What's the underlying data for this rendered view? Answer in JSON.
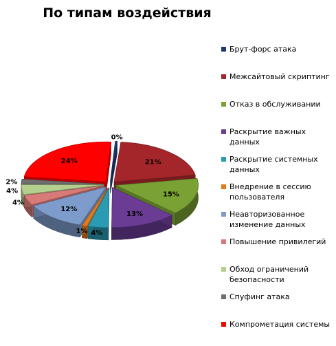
{
  "chart_data": {
    "type": "pie",
    "title": "По типам воздействия",
    "legend_position": "right",
    "slices": [
      {
        "label": "Брут-форс атака",
        "value": 0,
        "value_label": "0%",
        "color": "#1f3b73"
      },
      {
        "label": "Межсайтовый скриптинг",
        "value": 21,
        "value_label": "21%",
        "color": "#a4252a"
      },
      {
        "label": "Отказ в обслуживании",
        "value": 15,
        "value_label": "15%",
        "color": "#7aa134"
      },
      {
        "label": "Раскрытие важных данных",
        "value": 13,
        "value_label": "13%",
        "color": "#6b3c94"
      },
      {
        "label": "Раскрытие системных данных",
        "value": 4,
        "value_label": "4%",
        "color": "#2a9bb2"
      },
      {
        "label": "Внедрение  в сессию пользователя",
        "value": 1,
        "value_label": "1%",
        "color": "#e07b20"
      },
      {
        "label": "Неавторизованное изменение данных",
        "value": 12,
        "value_label": "12%",
        "color": "#7e9ccb"
      },
      {
        "label": "Повышение  привилегий",
        "value": 4,
        "value_label": "4%",
        "color": "#d77a78"
      },
      {
        "label": "Обход ограничений безопасности",
        "value": 4,
        "value_label": "4%",
        "color": "#b5cf8e"
      },
      {
        "label": "Спуфинг атака",
        "value": 2,
        "value_label": "2%",
        "color": "#6f6f6f"
      },
      {
        "label": "Компрометация системы",
        "value": 24,
        "value_label": "24%",
        "color": "#ff0000"
      }
    ]
  }
}
